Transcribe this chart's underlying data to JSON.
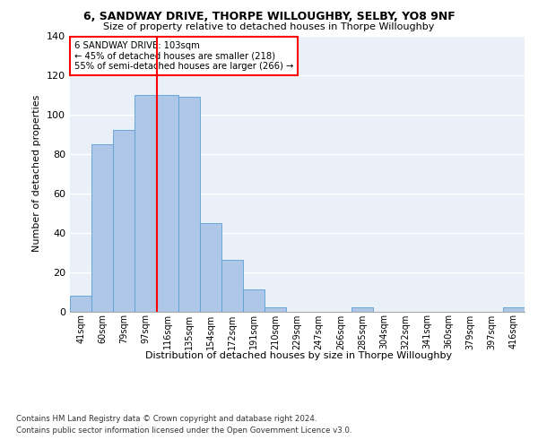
{
  "title1": "6, SANDWAY DRIVE, THORPE WILLOUGHBY, SELBY, YO8 9NF",
  "title2": "Size of property relative to detached houses in Thorpe Willoughby",
  "xlabel": "Distribution of detached houses by size in Thorpe Willoughby",
  "ylabel": "Number of detached properties",
  "categories": [
    "41sqm",
    "60sqm",
    "79sqm",
    "97sqm",
    "116sqm",
    "135sqm",
    "154sqm",
    "172sqm",
    "191sqm",
    "210sqm",
    "229sqm",
    "247sqm",
    "266sqm",
    "285sqm",
    "304sqm",
    "322sqm",
    "341sqm",
    "360sqm",
    "379sqm",
    "397sqm",
    "416sqm"
  ],
  "values": [
    8,
    85,
    92,
    110,
    110,
    109,
    45,
    26,
    11,
    2,
    0,
    0,
    0,
    2,
    0,
    0,
    0,
    0,
    0,
    0,
    2
  ],
  "bar_color": "#aec6e8",
  "bar_edge_color": "#5a9fd4",
  "vline_x": 3.5,
  "vline_color": "red",
  "annotation_text": "6 SANDWAY DRIVE: 103sqm\n← 45% of detached houses are smaller (218)\n55% of semi-detached houses are larger (266) →",
  "annotation_box_color": "white",
  "annotation_box_edge": "red",
  "ylim": [
    0,
    140
  ],
  "yticks": [
    0,
    20,
    40,
    60,
    80,
    100,
    120,
    140
  ],
  "bg_color": "#eaf0f8",
  "grid_color": "white",
  "footnote1": "Contains HM Land Registry data © Crown copyright and database right 2024.",
  "footnote2": "Contains public sector information licensed under the Open Government Licence v3.0."
}
